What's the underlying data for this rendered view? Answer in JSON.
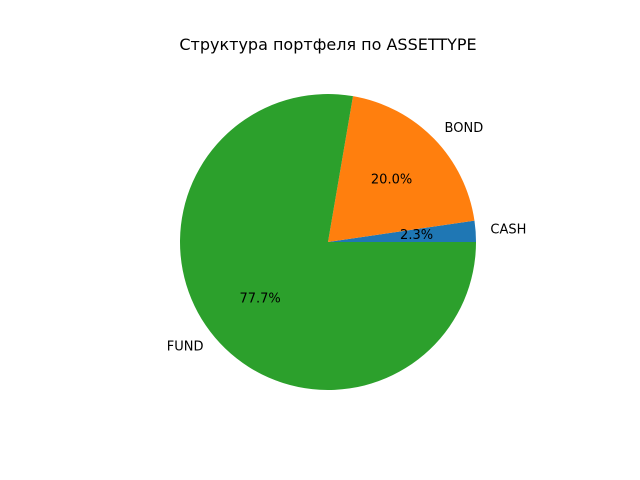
{
  "chart_data": {
    "type": "pie",
    "title": "Структура портфеля по ASSETTYPE",
    "labels": [
      "CASH",
      "BOND",
      "FUND"
    ],
    "values": [
      2.3,
      20.0,
      77.7
    ],
    "percent_labels": [
      "2.3%",
      "20.0%",
      "77.7%"
    ],
    "colors": [
      "#1f77b4",
      "#ff7f0e",
      "#2ca02c"
    ],
    "start_angle_deg": 0,
    "direction": "counterclockwise",
    "legend": "none"
  }
}
